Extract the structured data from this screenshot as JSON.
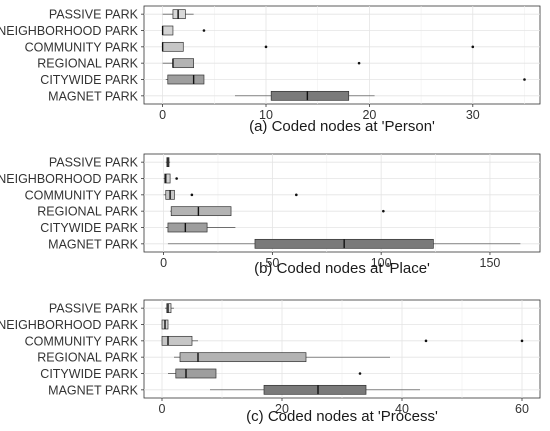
{
  "chart_data": [
    {
      "type": "boxplot",
      "orientation": "horizontal",
      "title": "(a) Coded nodes at 'Person'",
      "xlim": [
        -1.8,
        36.5
      ],
      "ticks": [
        0,
        10,
        20,
        30
      ],
      "tick_labels": [
        "0",
        "10",
        "20",
        "30"
      ],
      "grid": true,
      "categories": [
        "PASSIVE PARK",
        "NEIGHBORHOOD PARK",
        "COMMUNITY PARK",
        "REGIONAL PARK",
        "CITYWIDE PARK",
        "MAGNET PARK"
      ],
      "boxes": [
        {
          "name": "PASSIVE PARK",
          "whisker_low": 0,
          "q1": 1,
          "median": 1.5,
          "q3": 2.2,
          "whisker_high": 3,
          "outliers": [],
          "fill": "#d9d9d9"
        },
        {
          "name": "NEIGHBORHOOD PARK",
          "whisker_low": 0,
          "q1": 0,
          "median": 0,
          "q3": 1,
          "whisker_high": 1,
          "outliers": [
            4
          ],
          "fill": "#d4d4d4"
        },
        {
          "name": "COMMUNITY PARK",
          "whisker_low": 0,
          "q1": 0,
          "median": 0,
          "q3": 2,
          "whisker_high": 2,
          "outliers": [
            10,
            30
          ],
          "fill": "#c6c6c6"
        },
        {
          "name": "REGIONAL PARK",
          "whisker_low": 0,
          "q1": 1,
          "median": 1,
          "q3": 3,
          "whisker_high": 3,
          "outliers": [
            19
          ],
          "fill": "#b3b3b3"
        },
        {
          "name": "CITYWIDE PARK",
          "whisker_low": 0.3,
          "q1": 0.5,
          "median": 3,
          "q3": 4,
          "whisker_high": 4,
          "outliers": [
            35
          ],
          "fill": "#9e9e9e"
        },
        {
          "name": "MAGNET PARK",
          "whisker_low": 7,
          "q1": 10.5,
          "median": 14,
          "q3": 18,
          "whisker_high": 20.5,
          "outliers": [],
          "fill": "#7a7a7a"
        }
      ]
    },
    {
      "type": "boxplot",
      "orientation": "horizontal",
      "title": "(b) Coded nodes at 'Place'",
      "xlim": [
        -9,
        173
      ],
      "ticks": [
        0,
        50,
        100,
        150
      ],
      "tick_labels": [
        "0",
        "50",
        "100",
        "150"
      ],
      "grid": true,
      "categories": [
        "PASSIVE PARK",
        "NEIGHBORHOOD PARK",
        "COMMUNITY PARK",
        "REGIONAL PARK",
        "CITYWIDE PARK",
        "MAGNET PARK"
      ],
      "boxes": [
        {
          "name": "PASSIVE PARK",
          "whisker_low": 1,
          "q1": 1.5,
          "median": 2,
          "q3": 2.5,
          "whisker_high": 3,
          "outliers": [],
          "fill": "#d9d9d9"
        },
        {
          "name": "NEIGHBORHOOD PARK",
          "whisker_low": 0,
          "q1": 0.5,
          "median": 1,
          "q3": 3,
          "whisker_high": 3,
          "outliers": [
            6
          ],
          "fill": "#d4d4d4"
        },
        {
          "name": "COMMUNITY PARK",
          "whisker_low": 0,
          "q1": 1,
          "median": 3,
          "q3": 5,
          "whisker_high": 5,
          "outliers": [
            13,
            61
          ],
          "fill": "#c6c6c6"
        },
        {
          "name": "REGIONAL PARK",
          "whisker_low": 3,
          "q1": 3.5,
          "median": 16,
          "q3": 31,
          "whisker_high": 31,
          "outliers": [
            101
          ],
          "fill": "#b3b3b3"
        },
        {
          "name": "CITYWIDE PARK",
          "whisker_low": 1,
          "q1": 2,
          "median": 10,
          "q3": 20,
          "whisker_high": 33,
          "outliers": [],
          "fill": "#9e9e9e"
        },
        {
          "name": "MAGNET PARK",
          "whisker_low": 2,
          "q1": 42,
          "median": 83,
          "q3": 124,
          "whisker_high": 164,
          "outliers": [],
          "fill": "#7a7a7a"
        }
      ]
    },
    {
      "type": "boxplot",
      "orientation": "horizontal",
      "title": "(c) Coded nodes at 'Process'",
      "xlim": [
        -3,
        63
      ],
      "ticks": [
        0,
        20,
        40,
        60
      ],
      "tick_labels": [
        "0",
        "20",
        "40",
        "60"
      ],
      "grid": true,
      "categories": [
        "PASSIVE PARK",
        "NEIGHBORHOOD PARK",
        "COMMUNITY PARK",
        "REGIONAL PARK",
        "CITYWIDE PARK",
        "MAGNET PARK"
      ],
      "boxes": [
        {
          "name": "PASSIVE PARK",
          "whisker_low": 0.5,
          "q1": 0.8,
          "median": 1,
          "q3": 1.5,
          "whisker_high": 2,
          "outliers": [],
          "fill": "#d9d9d9"
        },
        {
          "name": "NEIGHBORHOOD PARK",
          "whisker_low": 0,
          "q1": 0,
          "median": 0.5,
          "q3": 1,
          "whisker_high": 1,
          "outliers": [],
          "fill": "#d4d4d4"
        },
        {
          "name": "COMMUNITY PARK",
          "whisker_low": 0,
          "q1": 0,
          "median": 1,
          "q3": 5,
          "whisker_high": 6,
          "outliers": [
            44,
            60
          ],
          "fill": "#c6c6c6"
        },
        {
          "name": "REGIONAL PARK",
          "whisker_low": 2,
          "q1": 3,
          "median": 6,
          "q3": 24,
          "whisker_high": 38,
          "outliers": [],
          "fill": "#b3b3b3"
        },
        {
          "name": "CITYWIDE PARK",
          "whisker_low": 1,
          "q1": 2.3,
          "median": 4,
          "q3": 9,
          "whisker_high": 9,
          "outliers": [
            33
          ],
          "fill": "#9e9e9e"
        },
        {
          "name": "MAGNET PARK",
          "whisker_low": 8,
          "q1": 17,
          "median": 26,
          "q3": 34,
          "whisker_high": 43,
          "outliers": [],
          "fill": "#7a7a7a"
        }
      ]
    }
  ]
}
